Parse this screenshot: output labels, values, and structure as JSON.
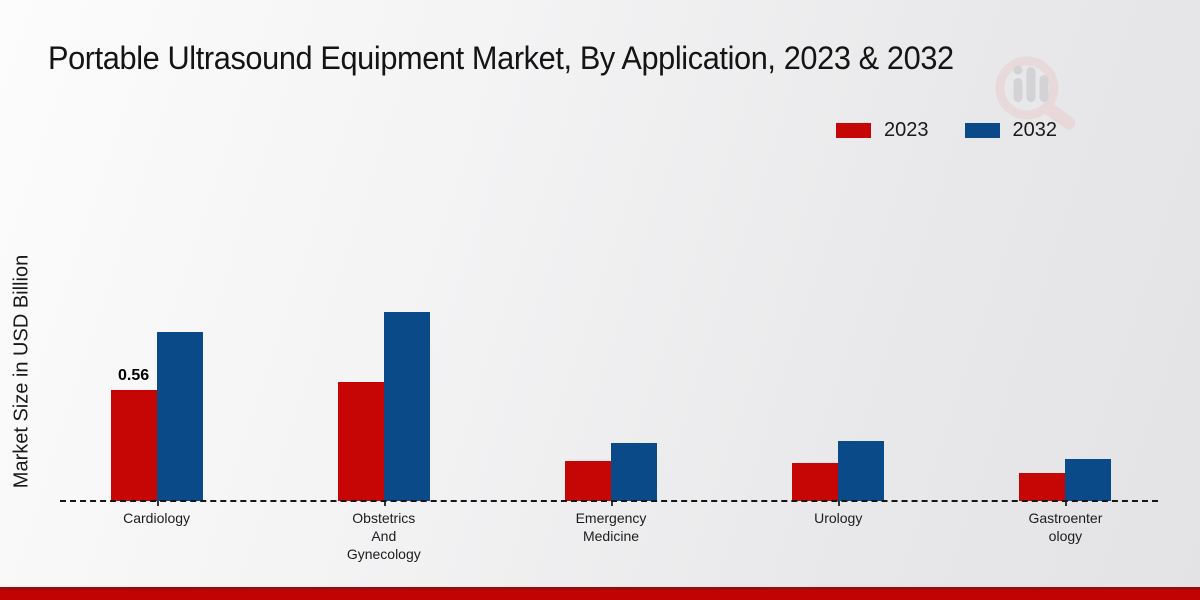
{
  "page": {
    "watermark_icon": "magnifier-bar-chart-logo"
  },
  "chart_data": {
    "type": "bar",
    "title": "Portable Ultrasound Equipment Market, By Application, 2023 & 2032",
    "ylabel": "Market Size in USD Billion",
    "xlabel": "",
    "categories": [
      "Cardiology",
      "Obstetrics\nAnd\nGynecology",
      "Emergency\nMedicine",
      "Urology",
      "Gastroenter\nology"
    ],
    "series": [
      {
        "name": "2023",
        "color": "#c60505",
        "values": [
          0.56,
          0.6,
          0.2,
          0.19,
          0.14
        ]
      },
      {
        "name": "2032",
        "color": "#0a4a88",
        "values": [
          0.85,
          0.95,
          0.29,
          0.3,
          0.21
        ]
      }
    ],
    "bar_labels": [
      {
        "category_index": 0,
        "series_index": 0,
        "text": "0.56"
      }
    ],
    "ylim": [
      0,
      1.2
    ],
    "grid": false,
    "baseline_style": "dashed",
    "legend_position": "top-right",
    "colors": {
      "series_2023": "#c60505",
      "series_2032": "#0a4a88",
      "footer_strip": "#c00303",
      "background_start": "#fcfcfc",
      "background_end": "#e3e3e5"
    }
  }
}
